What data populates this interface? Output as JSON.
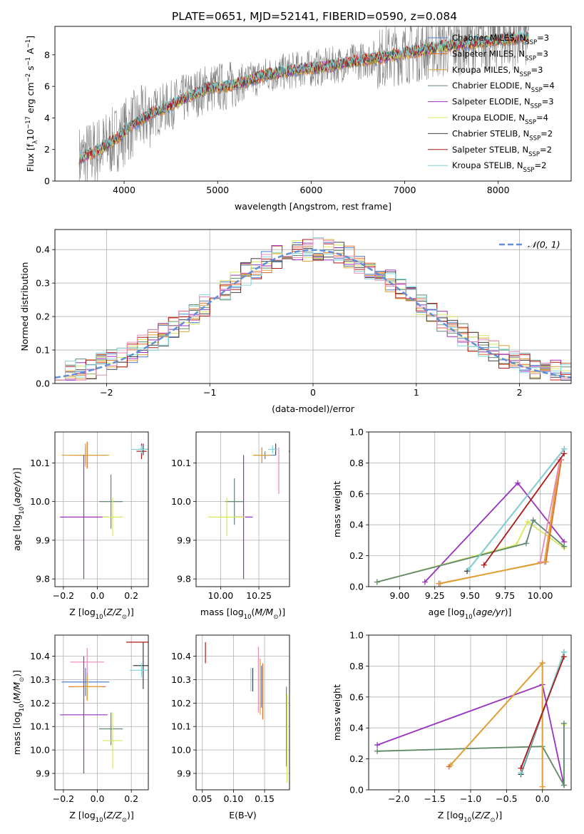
{
  "figure": {
    "title": "PLATE=0651, MJD=52141, FIBERID=0590, z=0.084"
  },
  "colors": {
    "Chabrier MILES": "#4f7fd0",
    "Salpeter MILES": "#e06a2a",
    "Kroupa MILES": "#e0a030",
    "Chabrier ELODIE": "#5f8a6f",
    "Salpeter ELODIE": "#9b30c0",
    "Kroupa ELODIE": "#d6e85a",
    "Chabrier STELIB": "#404040",
    "Salpeter STELIB": "#b01818",
    "Kroupa STELIB": "#7fd6d8",
    "data": "#808080",
    "gauss": "#5f8fd8",
    "pink": "#e88ab8"
  },
  "chart_data": [
    {
      "id": "spectrum",
      "type": "line",
      "xlabel": "wavelength [Angstrom, rest frame]",
      "ylabel": "Flux [f",
      "ylabel_sub": "λ",
      "ylabel_rest": "10",
      "ylabel_exp": "−17",
      "ylabel_tail": " erg cm",
      "ylabel_exp2": "−2",
      "ylabel_tail2": " s",
      "ylabel_exp3": "−1",
      "ylabel_tail3": " A",
      "ylabel_exp4": "−1",
      "ylabel_end": "]",
      "xlim": [
        3260,
        8780
      ],
      "ylim": [
        0,
        9.8
      ],
      "xticks": [
        "4000",
        "5000",
        "6000",
        "7000",
        "8000"
      ],
      "xtick_values": [
        4000,
        5000,
        6000,
        7000,
        8000
      ],
      "yticks": [
        "0",
        "2",
        "4",
        "6",
        "8"
      ],
      "ytick_values": [
        0,
        2,
        4,
        6,
        8
      ],
      "continuum": [
        [
          3520,
          1.4
        ],
        [
          3700,
          1.9
        ],
        [
          3900,
          2.6
        ],
        [
          4100,
          3.6
        ],
        [
          4300,
          4.3
        ],
        [
          4500,
          4.8
        ],
        [
          4700,
          5.4
        ],
        [
          4900,
          5.9
        ],
        [
          5100,
          6.0
        ],
        [
          5300,
          6.3
        ],
        [
          5500,
          6.7
        ],
        [
          5700,
          6.9
        ],
        [
          5900,
          7.1
        ],
        [
          6100,
          7.2
        ],
        [
          6300,
          7.4
        ],
        [
          6500,
          7.6
        ],
        [
          6700,
          7.8
        ],
        [
          6900,
          8.0
        ],
        [
          7100,
          8.2
        ],
        [
          7300,
          8.4
        ],
        [
          7500,
          8.6
        ],
        [
          7800,
          8.8
        ],
        [
          8100,
          9.0
        ],
        [
          8330,
          9.1
        ]
      ],
      "legend": [
        {
          "key": "Chabrier MILES",
          "label": "Chabrier MILES, N",
          "sub": "SSP",
          "tail": "=3"
        },
        {
          "key": "Salpeter MILES",
          "label": "Salpeter MILES, N",
          "sub": "SSP",
          "tail": "=3"
        },
        {
          "key": "Kroupa MILES",
          "label": "Kroupa MILES, N",
          "sub": "SSP",
          "tail": "=3"
        },
        {
          "key": "Chabrier ELODIE",
          "label": "Chabrier ELODIE, N",
          "sub": "SSP",
          "tail": "=4"
        },
        {
          "key": "Salpeter ELODIE",
          "label": "Salpeter ELODIE, N",
          "sub": "SSP",
          "tail": "=3"
        },
        {
          "key": "Kroupa ELODIE",
          "label": "Kroupa ELODIE, N",
          "sub": "SSP",
          "tail": "=4"
        },
        {
          "key": "Chabrier STELIB",
          "label": "Chabrier STELIB, N",
          "sub": "SSP",
          "tail": "=2"
        },
        {
          "key": "Salpeter STELIB",
          "label": "Salpeter STELIB, N",
          "sub": "SSP",
          "tail": "=2"
        },
        {
          "key": "Kroupa STELIB",
          "label": "Kroupa STELIB, N",
          "sub": "SSP",
          "tail": "=2"
        }
      ]
    },
    {
      "id": "residuals",
      "type": "histogram",
      "xlabel": "(data-model)/error",
      "ylabel": "Normed distribution",
      "xlim": [
        -2.5,
        2.5
      ],
      "ylim": [
        0,
        0.46
      ],
      "xticks": [
        "−2",
        "−1",
        "0",
        "1",
        "2"
      ],
      "xtick_values": [
        -2,
        -1,
        0,
        1,
        2
      ],
      "yticks": [
        "0.0",
        "0.1",
        "0.2",
        "0.3",
        "0.4"
      ],
      "ytick_values": [
        0,
        0.1,
        0.2,
        0.3,
        0.4
      ],
      "bin_width": 0.1,
      "legend": {
        "label": "𝒩(0, 1)"
      }
    },
    {
      "id": "age_vs_Z",
      "type": "errorbar",
      "xlabel": "Z [log",
      "xlabel_sub": "10",
      "xlabel_tail": "(Z/Z",
      "xlabel_sub2": "⊙",
      "xlabel_end": ")]",
      "ylabel": "age  [log",
      "ylabel_sub": "10",
      "ylabel_end": "(age/yr)]",
      "xlim": [
        -0.25,
        0.3
      ],
      "ylim": [
        9.78,
        10.18
      ],
      "xticks": [
        "−0.2",
        "0.0",
        "0.2"
      ],
      "xtick_values": [
        -0.2,
        0,
        0.2
      ],
      "yticks": [
        "9.8",
        "9.9",
        "10.0",
        "10.1"
      ],
      "ytick_values": [
        9.8,
        9.9,
        10.0,
        10.1
      ],
      "points": [
        {
          "key": "Chabrier MILES",
          "x": -0.07,
          "xerr": 0.06,
          "y": 10.12,
          "yerr": 0.02
        },
        {
          "key": "Salpeter MILES",
          "x": -0.06,
          "xerr": 0.11,
          "y": 10.12,
          "yerr": 0.035
        },
        {
          "key": "Kroupa MILES",
          "x": -0.07,
          "xerr": 0.14,
          "y": 10.12,
          "yerr": 0.03
        },
        {
          "key": "Chabrier ELODIE",
          "x": 0.08,
          "xerr": 0.07,
          "y": 10.0,
          "yerr": 0.07
        },
        {
          "key": "Salpeter ELODIE",
          "x": -0.08,
          "xerr": 0.14,
          "y": 9.96,
          "yerr": 0.16
        },
        {
          "key": "Kroupa ELODIE",
          "x": 0.09,
          "xerr": 0.06,
          "y": 9.96,
          "yerr": 0.05
        },
        {
          "key": "Chabrier STELIB",
          "x": 0.27,
          "xerr": 0.03,
          "y": 10.135,
          "yerr": 0.015
        },
        {
          "key": "Salpeter STELIB",
          "x": 0.26,
          "xerr": 0.03,
          "y": 10.13,
          "yerr": 0.02
        },
        {
          "key": "Kroupa STELIB",
          "x": 0.26,
          "xerr": 0.06,
          "y": 10.135,
          "yerr": 0.01
        }
      ]
    },
    {
      "id": "age_vs_mass",
      "type": "errorbar",
      "xlabel": "mass [log",
      "xlabel_sub": "10",
      "xlabel_tail": "(M/M",
      "xlabel_sub2": "⊙",
      "xlabel_end": ")]",
      "xlim": [
        9.84,
        10.45
      ],
      "ylim": [
        9.78,
        10.18
      ],
      "xticks": [
        "10.00",
        "10.25"
      ],
      "xtick_values": [
        10.0,
        10.25
      ],
      "yticks": [
        "9.8",
        "9.9",
        "10.0",
        "10.1"
      ],
      "ytick_values": [
        9.8,
        9.9,
        10.0,
        10.1
      ],
      "points": [
        {
          "key": "Chabrier MILES",
          "x": 10.29,
          "xerr": 0.07,
          "y": 10.12,
          "yerr": 0.01
        },
        {
          "key": "Salpeter MILES",
          "x": 10.27,
          "xerr": 0.06,
          "y": 10.12,
          "yerr": 0.02
        },
        {
          "key": "Kroupa MILES",
          "x": 10.27,
          "xerr": 0.06,
          "y": 10.12,
          "yerr": 0.02
        },
        {
          "key": "Chabrier ELODIE",
          "x": 10.09,
          "xerr": 0.06,
          "y": 10.0,
          "yerr": 0.06
        },
        {
          "key": "Salpeter ELODIE",
          "x": 10.15,
          "xerr": 0.06,
          "y": 9.96,
          "yerr": 0.16
        },
        {
          "key": "Kroupa ELODIE",
          "x": 10.04,
          "xerr": 0.12,
          "y": 9.96,
          "yerr": 0.05
        },
        {
          "key": "Chabrier STELIB",
          "x": 10.36,
          "xerr": 0.01,
          "y": 10.135,
          "yerr": 0.015
        },
        {
          "key": "Salpeter STELIB",
          "x": 10.46,
          "xerr": 0.015,
          "y": 10.13,
          "yerr": 0.02
        },
        {
          "key": "Kroupa STELIB",
          "x": 10.34,
          "xerr": 0.03,
          "y": 10.135,
          "yerr": 0.01
        },
        {
          "key": "pink",
          "x": 10.38,
          "xerr": 0.0,
          "y": 10.08,
          "yerr": 0.06
        }
      ]
    },
    {
      "id": "weight_vs_age",
      "type": "line",
      "xlabel": "age  [log",
      "xlabel_sub": "10",
      "xlabel_end": "(age/yr)]",
      "ylabel": "mass weight",
      "xlim": [
        8.78,
        10.22
      ],
      "ylim": [
        0,
        1.0
      ],
      "xticks": [
        "9.00",
        "9.25",
        "9.50",
        "9.75",
        "10.00"
      ],
      "xtick_values": [
        9.0,
        9.25,
        9.5,
        9.75,
        10.0
      ],
      "yticks": [
        "0.0",
        "0.2",
        "0.4",
        "0.6",
        "0.8",
        "1.0"
      ],
      "ytick_values": [
        0,
        0.2,
        0.4,
        0.6,
        0.8,
        1.0
      ],
      "series": [
        {
          "key": "Salpeter ELODIE",
          "x": [
            9.18,
            9.84,
            10.17
          ],
          "y": [
            0.03,
            0.67,
            0.29
          ]
        },
        {
          "key": "Kroupa ELODIE",
          "x": [
            8.84,
            9.83,
            9.91,
            10.17
          ],
          "y": [
            0.03,
            0.27,
            0.42,
            0.25
          ]
        },
        {
          "key": "Chabrier ELODIE",
          "x": [
            8.84,
            9.9,
            9.95,
            10.17
          ],
          "y": [
            0.03,
            0.28,
            0.43,
            0.26
          ]
        },
        {
          "key": "Salpeter MILES",
          "x": [
            9.28,
            10.04,
            10.15
          ],
          "y": [
            0.02,
            0.16,
            0.82
          ]
        },
        {
          "key": "Kroupa MILES",
          "x": [
            9.29,
            10.03,
            10.14
          ],
          "y": [
            0.02,
            0.16,
            0.82
          ]
        },
        {
          "key": "pink",
          "x": [
            10.0,
            10.14
          ],
          "y": [
            0.16,
            0.82
          ]
        },
        {
          "key": "Chabrier STELIB",
          "x": [
            9.48,
            10.17
          ],
          "y": [
            0.1,
            0.89
          ]
        },
        {
          "key": "Kroupa STELIB",
          "x": [
            9.49,
            10.17
          ],
          "y": [
            0.11,
            0.89
          ]
        },
        {
          "key": "Salpeter STELIB",
          "x": [
            9.6,
            10.17
          ],
          "y": [
            0.14,
            0.86
          ]
        }
      ]
    },
    {
      "id": "mass_vs_Z",
      "type": "errorbar",
      "xlabel": "Z [log",
      "xlabel_sub": "10",
      "xlabel_tail": "(Z/Z",
      "xlabel_sub2": "⊙",
      "xlabel_end": ")]",
      "ylabel": "mass [log",
      "ylabel_sub": "10",
      "ylabel_tail": "(M/M",
      "ylabel_sub2": "⊙",
      "ylabel_end": ")]",
      "xlim": [
        -0.25,
        0.3
      ],
      "ylim": [
        9.83,
        10.49
      ],
      "xticks": [
        "−0.2",
        "0.0",
        "0.2"
      ],
      "xtick_values": [
        -0.2,
        0,
        0.2
      ],
      "yticks": [
        "9.9",
        "10.0",
        "10.1",
        "10.2",
        "10.3",
        "10.4"
      ],
      "ytick_values": [
        9.9,
        10.0,
        10.1,
        10.2,
        10.3,
        10.4
      ],
      "points": [
        {
          "key": "Chabrier MILES",
          "x": -0.07,
          "xerr": 0.14,
          "y": 10.29,
          "yerr": 0.06
        },
        {
          "key": "Salpeter MILES",
          "x": -0.06,
          "xerr": 0.11,
          "y": 10.27,
          "yerr": 0.06
        },
        {
          "key": "Kroupa MILES",
          "x": -0.06,
          "xerr": 0.08,
          "y": 10.27,
          "yerr": 0.06
        },
        {
          "key": "pink",
          "x": -0.06,
          "xerr": 0.1,
          "y": 10.375,
          "yerr": 0.06
        },
        {
          "key": "Chabrier ELODIE",
          "x": 0.08,
          "xerr": 0.07,
          "y": 10.09,
          "yerr": 0.07
        },
        {
          "key": "Salpeter ELODIE",
          "x": -0.08,
          "xerr": 0.14,
          "y": 10.15,
          "yerr": 0.25
        },
        {
          "key": "Kroupa ELODIE",
          "x": 0.09,
          "xerr": 0.06,
          "y": 10.04,
          "yerr": 0.12
        },
        {
          "key": "Chabrier STELIB",
          "x": 0.27,
          "xerr": 0.06,
          "y": 10.36,
          "yerr": 0.1
        },
        {
          "key": "Salpeter STELIB",
          "x": 0.26,
          "xerr": 0.09,
          "y": 10.46,
          "yerr": 0.001
        },
        {
          "key": "Kroupa STELIB",
          "x": 0.26,
          "xerr": 0.07,
          "y": 10.34,
          "yerr": 0.03
        }
      ]
    },
    {
      "id": "mass_vs_ebv",
      "type": "errorbar",
      "xlabel": "E(B-V)",
      "xlim": [
        0.04,
        0.19
      ],
      "ylim": [
        9.83,
        10.49
      ],
      "xticks": [
        "0.05",
        "0.10",
        "0.15"
      ],
      "xtick_values": [
        0.05,
        0.1,
        0.15
      ],
      "yticks": [
        "9.9",
        "10.0",
        "10.1",
        "10.2",
        "10.3",
        "10.4"
      ],
      "ytick_values": [
        9.9,
        10.0,
        10.1,
        10.2,
        10.3,
        10.4
      ],
      "points": [
        {
          "key": "Salpeter STELIB",
          "x": 0.055,
          "xerr": 0,
          "y": 10.415,
          "yerr": 0.045
        },
        {
          "key": "Kroupa STELIB",
          "x": 0.128,
          "xerr": 0,
          "y": 10.3,
          "yerr": 0.05
        },
        {
          "key": "Chabrier STELIB",
          "x": 0.131,
          "xerr": 0,
          "y": 10.3,
          "yerr": 0.05
        },
        {
          "key": "pink",
          "x": 0.14,
          "xerr": 0,
          "y": 10.3,
          "yerr": 0.14
        },
        {
          "key": "Kroupa MILES",
          "x": 0.143,
          "xerr": 0,
          "y": 10.27,
          "yerr": 0.12
        },
        {
          "key": "Chabrier MILES",
          "x": 0.145,
          "xerr": 0,
          "y": 10.27,
          "yerr": 0.09
        },
        {
          "key": "Salpeter MILES",
          "x": 0.147,
          "xerr": 0,
          "y": 10.25,
          "yerr": 0.12
        },
        {
          "key": "Chabrier ELODIE",
          "x": 0.185,
          "xerr": 0,
          "y": 10.1,
          "yerr": 0.17
        },
        {
          "key": "Kroupa ELODIE",
          "x": 0.186,
          "xerr": 0,
          "y": 10.05,
          "yerr": 0.19
        }
      ]
    },
    {
      "id": "weight_vs_Z",
      "type": "line",
      "xlabel": "Z [log",
      "xlabel_sub": "10",
      "xlabel_tail": "(Z/Z",
      "xlabel_sub2": "⊙",
      "xlabel_end": ")]",
      "ylabel": "mass weight",
      "xlim": [
        -2.42,
        0.4
      ],
      "ylim": [
        0,
        1.0
      ],
      "xticks": [
        "−2.0",
        "−1.5",
        "−1.0",
        "−0.5",
        "0.0"
      ],
      "xtick_values": [
        -2.0,
        -1.5,
        -1.0,
        -0.5,
        0.0
      ],
      "yticks": [
        "0.0",
        "0.2",
        "0.4",
        "0.6",
        "0.8",
        "1.0"
      ],
      "ytick_values": [
        0,
        0.2,
        0.4,
        0.6,
        0.8,
        1.0
      ],
      "series": [
        {
          "key": "Salpeter ELODIE",
          "x": [
            -2.3,
            0.0,
            0.3
          ],
          "y": [
            0.29,
            0.68,
            0.03
          ]
        },
        {
          "key": "Kroupa ELODIE",
          "x": [
            -2.3,
            0.0,
            0.3,
            0.3
          ],
          "y": [
            0.25,
            0.28,
            0.03,
            0.42
          ]
        },
        {
          "key": "Chabrier ELODIE",
          "x": [
            -2.3,
            0.0,
            0.3,
            0.3
          ],
          "y": [
            0.25,
            0.28,
            0.03,
            0.43
          ]
        },
        {
          "key": "Salpeter MILES",
          "x": [
            -1.3,
            0.0,
            0.0
          ],
          "y": [
            0.15,
            0.82,
            0.02
          ]
        },
        {
          "key": "Kroupa MILES",
          "x": [
            -1.28,
            0.0,
            0.0
          ],
          "y": [
            0.16,
            0.82,
            0.02
          ]
        },
        {
          "key": "Chabrier STELIB",
          "x": [
            -0.3,
            0.3
          ],
          "y": [
            0.1,
            0.89
          ]
        },
        {
          "key": "Kroupa STELIB",
          "x": [
            -0.3,
            0.3
          ],
          "y": [
            0.11,
            0.89
          ]
        },
        {
          "key": "Salpeter STELIB",
          "x": [
            -0.3,
            0.3
          ],
          "y": [
            0.14,
            0.86
          ]
        }
      ]
    }
  ]
}
